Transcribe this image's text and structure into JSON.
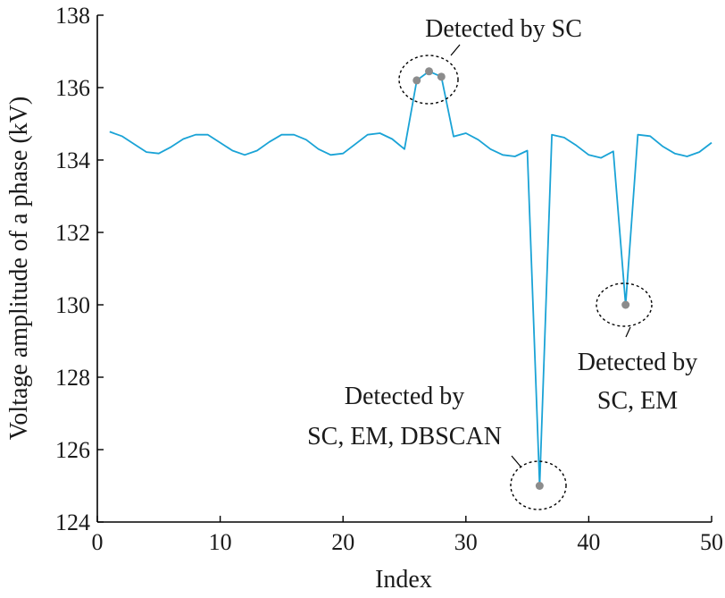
{
  "colors": {
    "series": "#1aa3d6",
    "point": "#8c8c8c",
    "axis": "#000000"
  },
  "chart_data": {
    "type": "line",
    "title": "",
    "xlabel": "Index",
    "ylabel": "Voltage amplitude of a phase (kV)",
    "xlim": [
      0,
      50
    ],
    "ylim": [
      124,
      138
    ],
    "xticks": [
      0,
      10,
      20,
      30,
      40,
      50
    ],
    "yticks": [
      124,
      126,
      128,
      130,
      132,
      134,
      136,
      138
    ],
    "grid": false,
    "series": [
      {
        "x": [
          1,
          2,
          3,
          4,
          5,
          6,
          7,
          8,
          9,
          10,
          11,
          12,
          13,
          14,
          15,
          16,
          17,
          18,
          19,
          20,
          21,
          22,
          23,
          24,
          25,
          26,
          27,
          28,
          29,
          30,
          31,
          32,
          33,
          34,
          35,
          36,
          37,
          38,
          39,
          40,
          41,
          42,
          43,
          44,
          45,
          46,
          47,
          48,
          49,
          50
        ],
        "values": [
          134.78,
          134.66,
          134.44,
          134.22,
          134.18,
          134.36,
          134.58,
          134.7,
          134.7,
          134.48,
          134.26,
          134.14,
          134.26,
          134.5,
          134.7,
          134.7,
          134.56,
          134.3,
          134.14,
          134.18,
          134.44,
          134.7,
          134.74,
          134.58,
          134.3,
          136.2,
          136.45,
          136.3,
          134.65,
          134.74,
          134.56,
          134.3,
          134.14,
          134.1,
          134.26,
          125.0,
          134.7,
          134.62,
          134.4,
          134.14,
          134.06,
          134.24,
          130.0,
          134.7,
          134.66,
          134.38,
          134.18,
          134.1,
          134.22,
          134.48
        ]
      }
    ],
    "highlighted_points": [
      {
        "x": 26,
        "y": 136.2
      },
      {
        "x": 27,
        "y": 136.45
      },
      {
        "x": 28,
        "y": 136.3
      },
      {
        "x": 36,
        "y": 125.0
      },
      {
        "x": 43,
        "y": 130.0
      }
    ],
    "annotations": [
      {
        "lines": [
          "Detected by SC"
        ]
      },
      {
        "lines": [
          "Detected by",
          "SC, EM, DBSCAN"
        ]
      },
      {
        "lines": [
          "Detected by",
          "SC, EM"
        ]
      }
    ]
  }
}
